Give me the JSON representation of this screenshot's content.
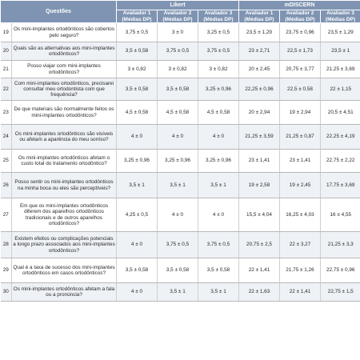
{
  "header": {
    "questions_label": "Questões",
    "group_likert": "Likert",
    "group_mdiscern": "mDISCERN",
    "columns": [
      "Avaliador 1\n(Médias DP)",
      "Avaliador 2\n(Médias DP)",
      "Avaliador 3\n(Médias DP)",
      "Avaliador 1\n(Médias DP)",
      "Avaliador 2\n(Médias DP)",
      "Avaliador 3\n(Médias DP)"
    ]
  },
  "rows": [
    {
      "num": "19",
      "question": "Os mini-implantes ortodônticos são cobertos pelo seguro?",
      "values": [
        "3,75 ± 0,5",
        "3 ± 0",
        "3,25 ± 0,5",
        "23,5 ± 1,29",
        "23,75 ± 0,96",
        "23,5 ± 1,29"
      ]
    },
    {
      "num": "20",
      "question": "Quais são as alternativas aos mini-implantes ortodônticos?",
      "values": [
        "3,5 ± 0,58",
        "3,75 ± 0,5",
        "3,75 ± 0,5",
        "23 ± 2,71",
        "22,5 ± 1,73",
        "23,5 ± 1"
      ]
    },
    {
      "num": "21",
      "question": "Posso viajar com mini-implantes ortodônticos?",
      "values": [
        "3 ± 0,82",
        "3 ± 0,82",
        "3 ± 0,82",
        "20 ± 2,45",
        "20,75 ± 3,77",
        "21,25 ± 3,69"
      ]
    },
    {
      "num": "22",
      "question": "Com mini-implantes ortodônticos, precisarei consultar meu ortodontista com que frequência?",
      "values": [
        "3,5 ± 0,58",
        "3,5 ± 0,58",
        "3,25 ± 0,96",
        "22,25 ± 0,96",
        "22,5 ± 0,58",
        "22 ± 1,15"
      ]
    },
    {
      "num": "23",
      "question": "De que materiais são normalmente feitos os mini-implantes ortodônticos?",
      "values": [
        "4,5 ± 0,58",
        "4,5 ± 0,58",
        "4,5 ± 0,58",
        "20 ± 2,94",
        "19 ± 2,94",
        "20,5 ± 4,51"
      ]
    },
    {
      "num": "24",
      "question": "Os mini-implantes ortodônticos são visíveis ou afetam a aparência do meu sorriso?",
      "values": [
        "4 ± 0",
        "4 ± 0",
        "4 ± 0",
        "21,25 ± 3,59",
        "21,25 ± 0,87",
        "22,25 ± 4,19"
      ]
    },
    {
      "num": "25",
      "question": "Os mini-implantes ortodônticos afetam o custo total do tratamento ortodôntico?",
      "values": [
        "3,25 ± 0,96",
        "3,25 ± 0,96",
        "3,25 ± 0,96",
        "23 ± 1,41",
        "23 ± 1,41",
        "22,75 ± 2,22"
      ]
    },
    {
      "num": "26",
      "question": "Posso sentir os mini-implantes ortodônticos na minha boca ou eles são perceptíveis?",
      "values": [
        "3,5 ± 1",
        "3,5 ± 1",
        "3,5 ± 1",
        "19 ± 2,58",
        "19 ± 2,45",
        "17,75 ± 3,69"
      ]
    },
    {
      "num": "27",
      "question": "Em que os mini-implantes ortodônticos diferem dos aparelhos ortodônticos tradicionais e de outros aparelhos ortodônticos?",
      "values": [
        "4,25 ± 0,5",
        "4 ± 0",
        "4 ± 0",
        "15,5 ± 4,04",
        "16,25 ± 4,03",
        "16 ± 4,55"
      ]
    },
    {
      "num": "28",
      "question": "Existem efeitos ou complicações potenciais a longo prazo associados aos mini-implantes ortodônticos?",
      "values": [
        "4 ± 0",
        "3,75 ± 0,5",
        "3,75 ± 0,5",
        "20,75 ± 2,5",
        "22 ± 3,27",
        "21,25 ± 3,3"
      ]
    },
    {
      "num": "29",
      "question": "Qual é a taxa de sucesso dos mini-implantes ortodônticos em casos ortodônticos?",
      "values": [
        "3,5 ± 0,58",
        "3,5 ± 0,58",
        "3,5 ± 0,58",
        "22 ± 1,41",
        "21,75 ± 1,26",
        "22,75 ± 0,96"
      ]
    },
    {
      "num": "30",
      "question": "Os mini-implantes ortodônticos afetam a fala ou a pronúncia?",
      "values": [
        "4 ± 0",
        "3,5 ± 1",
        "3,5 ± 1",
        "22 ± 1,63",
        "22 ± 1,41",
        "22,75 ± 1,5"
      ]
    }
  ]
}
